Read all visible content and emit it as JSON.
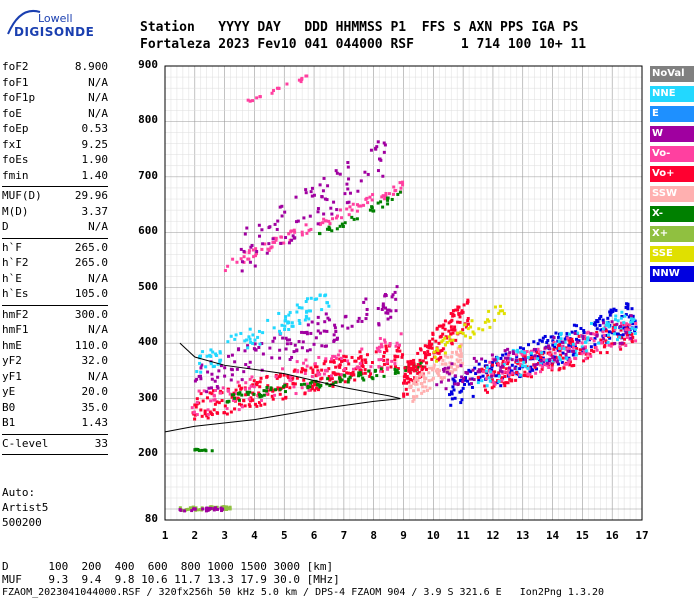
{
  "logo": {
    "top": "Lowell",
    "main": "DIGISONDE"
  },
  "header": {
    "line1": "Station   YYYY DAY   DDD HHMMSS P1  FFS S AXN PPS IGA PS",
    "line2": "Fortaleza 2023 Fev10 041 044000 RSF      1 714 100 10+ 11"
  },
  "params_a": [
    {
      "k": "foF2",
      "v": "8.900"
    },
    {
      "k": "foF1",
      "v": "N/A"
    },
    {
      "k": "foF1p",
      "v": "N/A"
    },
    {
      "k": "foE",
      "v": "N/A"
    },
    {
      "k": "foEp",
      "v": "0.53"
    },
    {
      "k": "fxI",
      "v": "9.25"
    },
    {
      "k": "foEs",
      "v": "1.90"
    },
    {
      "k": "fmin",
      "v": "1.40"
    }
  ],
  "params_b": [
    {
      "k": "MUF(D)",
      "v": "29.96"
    },
    {
      "k": "M(D)",
      "v": "3.37"
    },
    {
      "k": "D",
      "v": "N/A"
    }
  ],
  "params_c": [
    {
      "k": "h`F",
      "v": "265.0"
    },
    {
      "k": "h`F2",
      "v": "265.0"
    },
    {
      "k": "h`E",
      "v": "N/A"
    },
    {
      "k": "h`Es",
      "v": "105.0"
    }
  ],
  "params_d": [
    {
      "k": "hmF2",
      "v": "300.0"
    },
    {
      "k": "hmF1",
      "v": "N/A"
    },
    {
      "k": "hmE",
      "v": "110.0"
    },
    {
      "k": "yF2",
      "v": "32.0"
    },
    {
      "k": "yF1",
      "v": "N/A"
    },
    {
      "k": "yE",
      "v": "20.0"
    },
    {
      "k": "B0",
      "v": "35.0"
    },
    {
      "k": "B1",
      "v": "1.43"
    }
  ],
  "params_e": [
    {
      "k": "C-level",
      "v": "33"
    }
  ],
  "auto": {
    "l1": "Auto:",
    "l2": "Artist5",
    "l3": "500200"
  },
  "footer": {
    "d_row": "D      100  200  400  600  800 1000 1500 3000 [km]",
    "muf_row": "MUF    9.3  9.4  9.8 10.6 11.7 13.3 17.9 30.0 [MHz]",
    "info": "FZAOM_2023041044000.RSF / 320fx256h 50 kHz 5.0 km / DPS-4 FZAOM 904 / 3.9 S 321.6 E   Ion2Png 1.3.20"
  },
  "legend": [
    {
      "label": "NoVal",
      "color": "#808080"
    },
    {
      "label": "NNE",
      "color": "#22d8ff"
    },
    {
      "label": "E",
      "color": "#1e90ff"
    },
    {
      "label": "W",
      "color": "#a000a0"
    },
    {
      "label": "Vo-",
      "color": "#ff40a0"
    },
    {
      "label": "Vo+",
      "color": "#ff0030"
    },
    {
      "label": "SSW",
      "color": "#ffb0b0"
    },
    {
      "label": "X-",
      "color": "#008000"
    },
    {
      "label": "X+",
      "color": "#90c040"
    },
    {
      "label": "SSE",
      "color": "#e0e000"
    },
    {
      "label": "NNW",
      "color": "#0000e0"
    }
  ],
  "chart_data": {
    "type": "scatter",
    "xlim": [
      1,
      17
    ],
    "ylim": [
      80,
      900
    ],
    "x_ticks": [
      1,
      2,
      3,
      4,
      5,
      6,
      7,
      8,
      9,
      10,
      11,
      12,
      13,
      14,
      15,
      16,
      17
    ],
    "y_ticks": [
      80,
      200,
      300,
      400,
      500,
      600,
      700,
      800,
      900
    ],
    "grid": true,
    "legend_placement": "right",
    "profile_curve": [
      [
        1.5,
        400
      ],
      [
        2.0,
        375
      ],
      [
        3.0,
        360
      ],
      [
        5.0,
        345
      ],
      [
        7.0,
        320
      ],
      [
        8.5,
        305
      ],
      [
        8.9,
        300
      ]
    ],
    "profile_lower": [
      [
        1.0,
        240
      ],
      [
        2.0,
        250
      ],
      [
        4.0,
        262
      ],
      [
        6.0,
        280
      ],
      [
        8.0,
        295
      ],
      [
        8.9,
        300
      ]
    ],
    "traces": [
      {
        "mode": "Vo+",
        "x0": 1.9,
        "x1": 9.0,
        "y0": 280,
        "y1": 380,
        "n": 260,
        "spread": 25
      },
      {
        "mode": "Vo-",
        "x0": 1.9,
        "x1": 9.0,
        "y0": 285,
        "y1": 390,
        "n": 120,
        "spread": 30
      },
      {
        "mode": "X-",
        "x0": 3.0,
        "x1": 9.8,
        "y0": 300,
        "y1": 360,
        "n": 90,
        "spread": 8
      },
      {
        "mode": "W",
        "x0": 2.0,
        "x1": 9.0,
        "y0": 330,
        "y1": 480,
        "n": 140,
        "spread": 30
      },
      {
        "mode": "NNE",
        "x0": 2.0,
        "x1": 6.5,
        "y0": 360,
        "y1": 480,
        "n": 90,
        "spread": 20
      },
      {
        "mode": "Vo-",
        "x0": 3.0,
        "x1": 9.0,
        "y0": 540,
        "y1": 685,
        "n": 90,
        "spread": 10
      },
      {
        "mode": "X-",
        "x0": 6.0,
        "x1": 9.0,
        "y0": 590,
        "y1": 670,
        "n": 30,
        "spread": 6
      },
      {
        "mode": "W",
        "x0": 3.5,
        "x1": 8.5,
        "y0": 560,
        "y1": 740,
        "n": 90,
        "spread": 40
      },
      {
        "mode": "Vo-",
        "x0": 3.5,
        "x1": 6.0,
        "y0": 830,
        "y1": 885,
        "n": 18,
        "spread": 4
      },
      {
        "mode": "Vo+",
        "x0": 9.0,
        "x1": 11.2,
        "y0": 330,
        "y1": 460,
        "n": 160,
        "spread": 30
      },
      {
        "mode": "SSW",
        "x0": 9.2,
        "x1": 11.0,
        "y0": 310,
        "y1": 380,
        "n": 90,
        "spread": 20
      },
      {
        "mode": "NNW",
        "x0": 10.5,
        "x1": 16.8,
        "y0": 310,
        "y1": 450,
        "n": 260,
        "spread": 30
      },
      {
        "mode": "Vo+",
        "x0": 11.5,
        "x1": 16.8,
        "y0": 330,
        "y1": 420,
        "n": 160,
        "spread": 25
      },
      {
        "mode": "Vo-",
        "x0": 11.5,
        "x1": 16.8,
        "y0": 340,
        "y1": 420,
        "n": 120,
        "spread": 25
      },
      {
        "mode": "NNE",
        "x0": 11.5,
        "x1": 16.8,
        "y0": 340,
        "y1": 440,
        "n": 90,
        "spread": 25
      },
      {
        "mode": "SSE",
        "x0": 10.0,
        "x1": 12.5,
        "y0": 380,
        "y1": 460,
        "n": 40,
        "spread": 20
      },
      {
        "mode": "W",
        "x0": 10.0,
        "x1": 16.8,
        "y0": 330,
        "y1": 430,
        "n": 90,
        "spread": 25
      },
      {
        "mode": "X+",
        "x0": 1.5,
        "x1": 3.2,
        "y0": 100,
        "y1": 102,
        "n": 40,
        "spread": 3
      },
      {
        "mode": "W",
        "x0": 1.5,
        "x1": 3.0,
        "y0": 98,
        "y1": 100,
        "n": 25,
        "spread": 3
      },
      {
        "mode": "X-",
        "x0": 2.0,
        "x1": 2.6,
        "y0": 207,
        "y1": 207,
        "n": 10,
        "spread": 3
      }
    ]
  }
}
